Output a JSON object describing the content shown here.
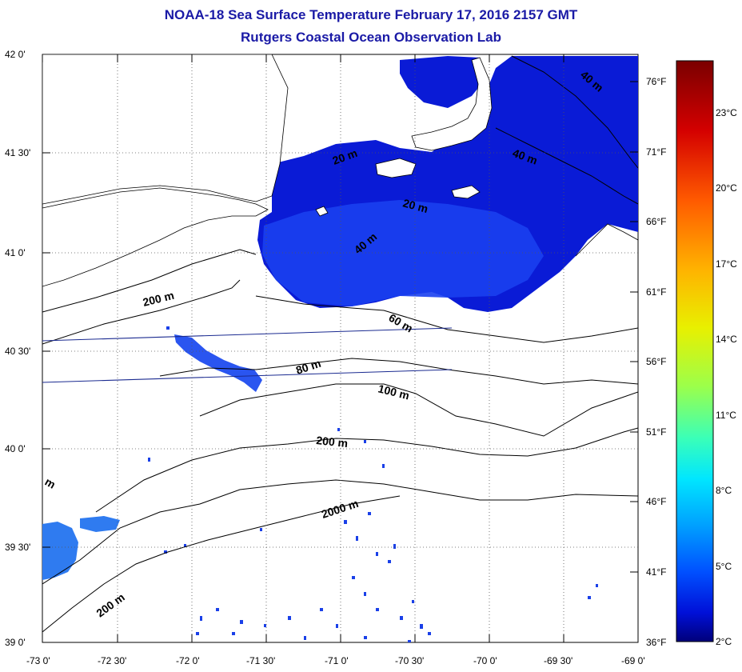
{
  "header": {
    "title": "NOAA-18 Sea Surface Temperature February 17, 2016 2157 GMT",
    "subtitle": "Rutgers Coastal Ocean Observation Lab"
  },
  "map": {
    "lat_labels": [
      "42 0'",
      "41 30'",
      "41 0'",
      "40 30'",
      "40 0'",
      "39 30'",
      "39 0'"
    ],
    "lon_labels": [
      "-73 0'",
      "-72 30'",
      "-72 0'",
      "-71 30'",
      "-71 0'",
      "-70 30'",
      "-70 0'",
      "-69 30'",
      "-69 0'"
    ],
    "fahrenheit_labels": [
      "76°F",
      "71°F",
      "66°F",
      "61°F",
      "56°F",
      "51°F",
      "46°F",
      "41°F",
      "36°F"
    ],
    "contour_labels": [
      "20 m",
      "40 m",
      "40 m",
      "20 m",
      "40 m",
      "60 m",
      "80 m",
      "100 m",
      "200 m",
      "2000 m",
      "200 m",
      "200 m",
      "m"
    ]
  },
  "colorbar": {
    "labels": [
      "23°C",
      "20°C",
      "17°C",
      "14°C",
      "11°C",
      "8°C",
      "5°C",
      "2°C"
    ],
    "colors": [
      "#7a0000",
      "#d40000",
      "#ff5a00",
      "#ffb300",
      "#e8f000",
      "#9cff4a",
      "#3affb8",
      "#00e6ff",
      "#00a0ff",
      "#0050ff",
      "#0010d8",
      "#00007a"
    ]
  }
}
